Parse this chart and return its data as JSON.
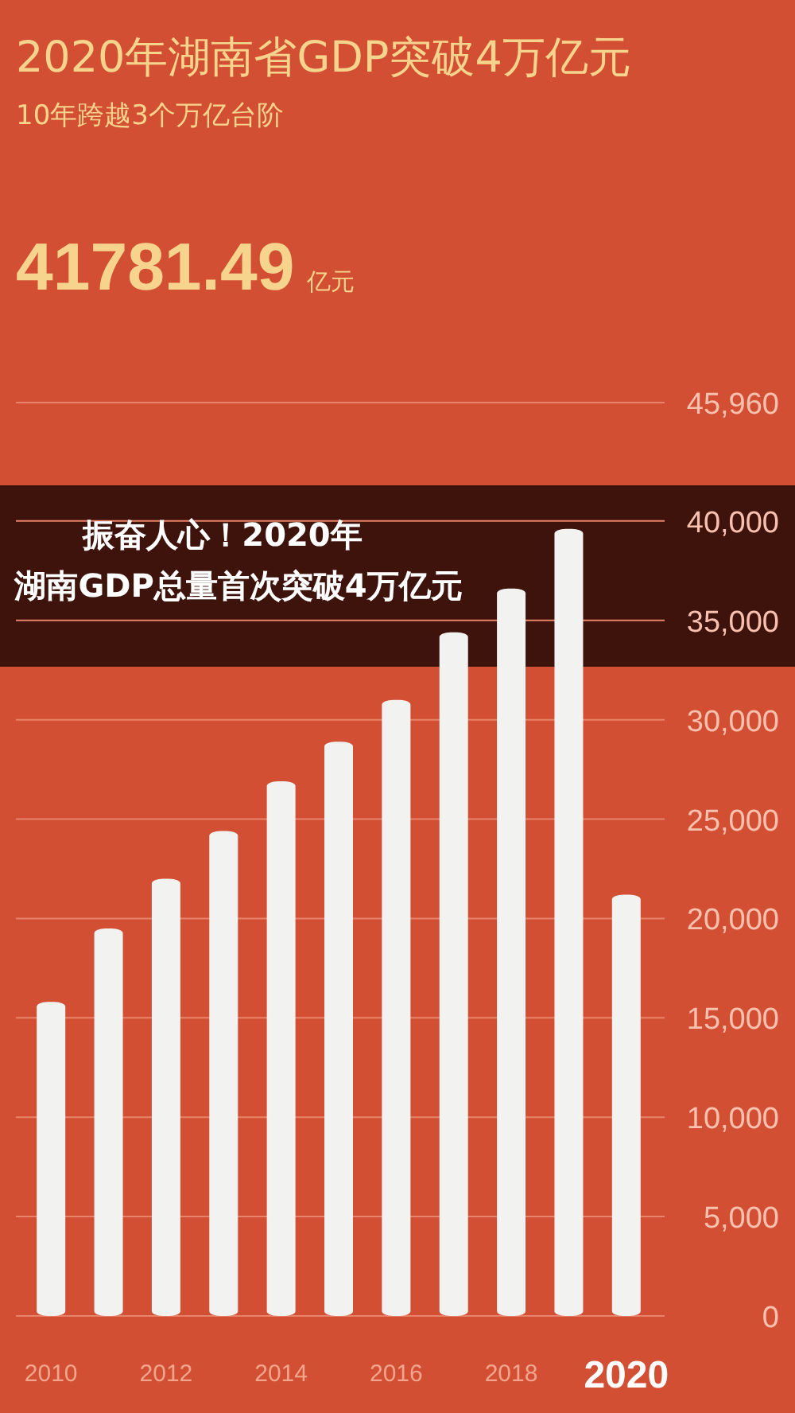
{
  "chart_data": {
    "type": "bar",
    "title": "2020年湖南省GDP突破4万亿元",
    "subtitle": "10年跨越3个万亿台阶",
    "annotations": [
      "41781.49 亿元",
      "振奋人心！2020年",
      "湖南GDP总量首次突破4万亿元"
    ],
    "categories": [
      "2010",
      null,
      "2012",
      null,
      "2014",
      null,
      "2016",
      null,
      "2018",
      null,
      "2020"
    ],
    "values": [
      15800,
      19500,
      22000,
      24400,
      26900,
      28900,
      31000,
      34400,
      36600,
      39600,
      21200
    ],
    "color": "#f2f2f0",
    "ylim": [
      0,
      45960
    ],
    "yticks": [
      0,
      {
        "value": 5000,
        "label": "5,000"
      },
      {
        "value": 10000,
        "label": "10,000"
      },
      {
        "value": 15000,
        "label": "15,000"
      },
      {
        "value": 20000,
        "label": "20,000"
      },
      {
        "value": 25000,
        "label": "25,000"
      },
      {
        "value": 30000,
        "label": "30,000"
      },
      {
        "value": 35000,
        "label": "35,000"
      },
      {
        "value": 40000,
        "label": "40,000"
      },
      {
        "value": 45960,
        "label": "45,960"
      }
    ],
    "grid": "y"
  }
}
